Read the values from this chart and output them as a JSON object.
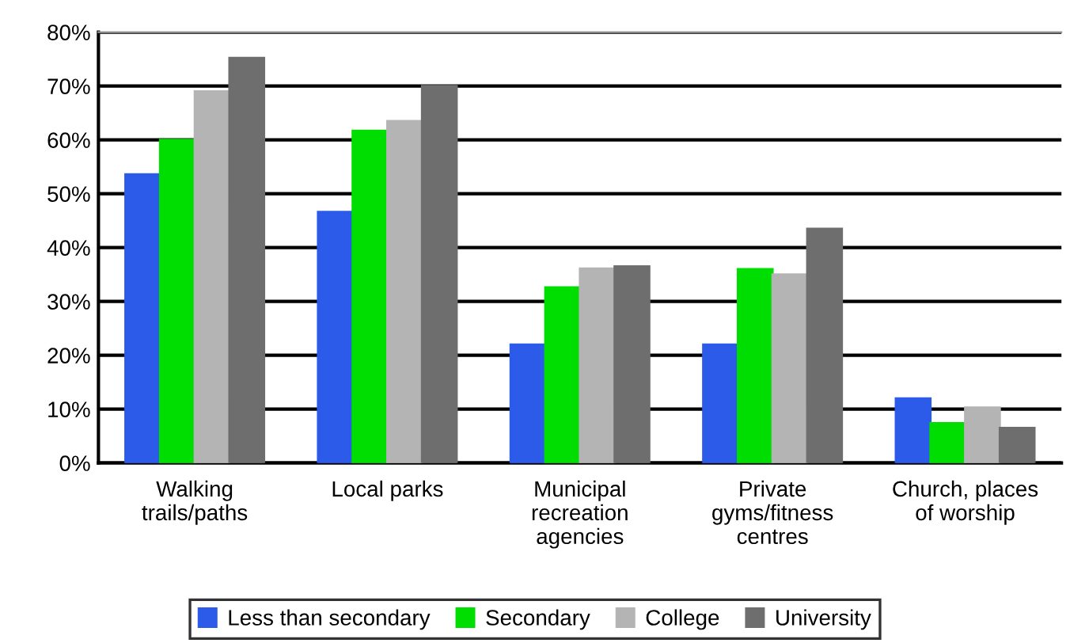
{
  "chart_data": {
    "type": "bar",
    "categories": [
      "Walking trails/paths",
      "Local parks",
      "Municipal recreation agencies",
      "Private gyms/fitness centres",
      "Church, places of worship"
    ],
    "series": [
      {
        "name": "Less than secondary",
        "color": "#2b5be8",
        "values": [
          53.6,
          46.6,
          22,
          22,
          12
        ]
      },
      {
        "name": "Secondary",
        "color": "#00dd00",
        "values": [
          60,
          61.7,
          32.6,
          36,
          7.4
        ]
      },
      {
        "name": "College",
        "color": "#b4b4b4",
        "values": [
          69,
          63.5,
          36.1,
          35,
          10.3
        ]
      },
      {
        "name": "University",
        "color": "#6e6e6e",
        "values": [
          75.2,
          70,
          36.5,
          43.5,
          6.5
        ]
      }
    ],
    "ylim": [
      0,
      80
    ],
    "yticks": [
      {
        "value": 0,
        "label": "0%"
      },
      {
        "value": 10,
        "label": "10%"
      },
      {
        "value": 20,
        "label": "20%"
      },
      {
        "value": 30,
        "label": "30%"
      },
      {
        "value": 40,
        "label": "40%"
      },
      {
        "value": 50,
        "label": "50%"
      },
      {
        "value": 60,
        "label": "60%"
      },
      {
        "value": 70,
        "label": "70%"
      },
      {
        "value": 80,
        "label": "80%"
      }
    ],
    "grid": "y",
    "legend": "bottom"
  }
}
